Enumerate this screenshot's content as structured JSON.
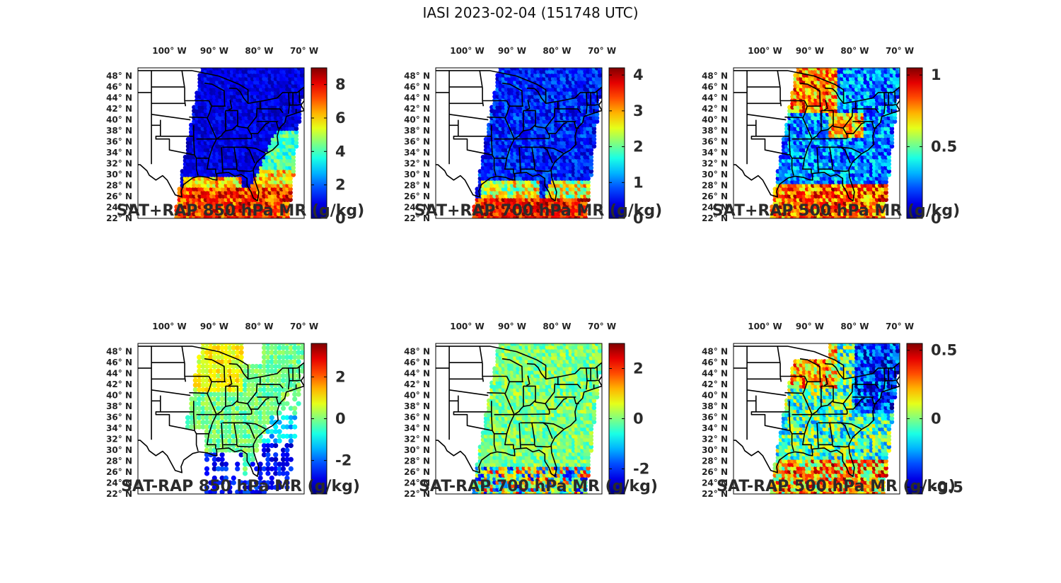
{
  "figure": {
    "title": "IASI 2023-02-04 (151748 UTC)"
  },
  "axes": {
    "lon_labels": [
      "100° W",
      "90° W",
      "80° W",
      "70° W"
    ],
    "lon_values": [
      -100,
      -90,
      -80,
      -70
    ],
    "lat_labels": [
      "48° N",
      "46° N",
      "44° N",
      "42° N",
      "40° N",
      "38° N",
      "36° N",
      "34° N",
      "32° N",
      "30° N",
      "28° N",
      "26° N",
      "24° N",
      "22° N"
    ],
    "lat_values": [
      48,
      46,
      44,
      42,
      40,
      38,
      36,
      34,
      32,
      30,
      28,
      26,
      24,
      22
    ],
    "lon_range": [
      -107,
      -70
    ],
    "lat_range": [
      22,
      49.5
    ]
  },
  "colormap": "jet",
  "panels": [
    {
      "id": "p1",
      "title": "SAT+RAP 850 hPa MR (g/kg)",
      "clim": [
        0,
        9
      ],
      "ticks": [
        0,
        2,
        4,
        6,
        8
      ],
      "tick_labels": [
        "0",
        "2",
        "4",
        "6",
        "8"
      ],
      "kind": "total",
      "level": 850
    },
    {
      "id": "p2",
      "title": "SAT+RAP 700 hPa MR (g/kg)",
      "clim": [
        0,
        4.2
      ],
      "ticks": [
        0,
        1,
        2,
        3,
        4
      ],
      "tick_labels": [
        "0",
        "1",
        "2",
        "3",
        "4"
      ],
      "kind": "total",
      "level": 700
    },
    {
      "id": "p3",
      "title": "SAT+RAP 500 hPa MR (g/kg)",
      "clim": [
        0,
        1.05
      ],
      "ticks": [
        0,
        0.5,
        1
      ],
      "tick_labels": [
        "0",
        "0.5",
        "1"
      ],
      "kind": "total",
      "level": 500
    },
    {
      "id": "p4",
      "title": "SAT-RAP 850 hPa MR (g/kg)",
      "clim": [
        -3.6,
        3.6
      ],
      "ticks": [
        -2,
        0,
        2
      ],
      "tick_labels": [
        "-2",
        "0",
        "2"
      ],
      "kind": "diff",
      "level": 850
    },
    {
      "id": "p5",
      "title": "SAT-RAP 700 hPa MR (g/kg)",
      "clim": [
        -3,
        3
      ],
      "ticks": [
        -2,
        0,
        2
      ],
      "tick_labels": [
        "-2",
        "0",
        "2"
      ],
      "kind": "diff",
      "level": 700
    },
    {
      "id": "p6",
      "title": "SAT-RAP 500 hPa MR (g/kg)",
      "clim": [
        -0.55,
        0.55
      ],
      "ticks": [
        -0.5,
        0,
        0.5
      ],
      "tick_labels": [
        "-0.5",
        "0",
        "0.5"
      ],
      "kind": "diff",
      "level": 500
    }
  ]
}
